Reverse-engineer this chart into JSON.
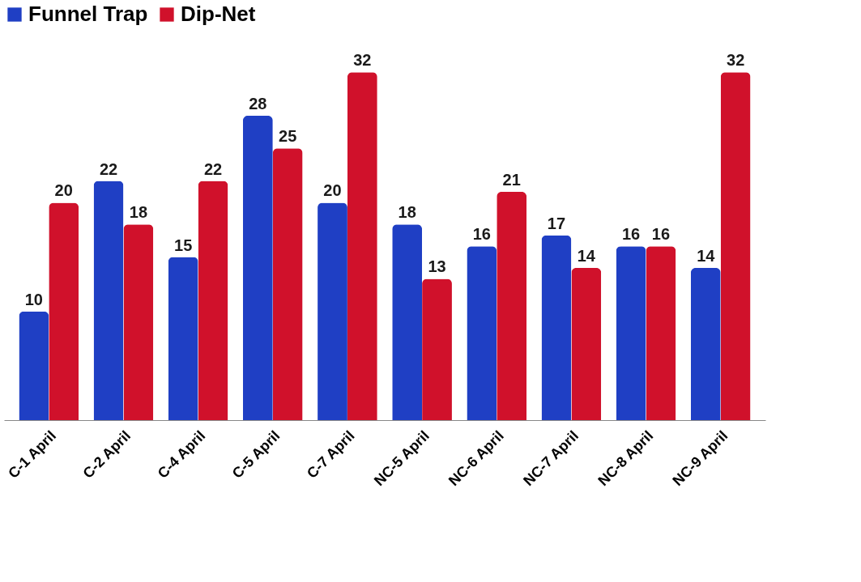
{
  "chart_data": {
    "type": "bar",
    "categories": [
      "C-1 April",
      "C-2 April",
      "C-4 April",
      "C-5 April",
      "C-7 April",
      "NC-5 April",
      "NC-6 April",
      "NC-7 April",
      "NC-8 April",
      "NC-9 April"
    ],
    "series": [
      {
        "name": "Funnel Trap",
        "color": "#1f3fc4",
        "values": [
          10,
          22,
          15,
          28,
          20,
          18,
          16,
          17,
          16,
          14
        ]
      },
      {
        "name": "Dip-Net",
        "color": "#d0112b",
        "values": [
          20,
          18,
          22,
          25,
          32,
          13,
          21,
          14,
          16,
          32
        ]
      }
    ],
    "data_labels": true,
    "legend": "top",
    "grid": false
  }
}
